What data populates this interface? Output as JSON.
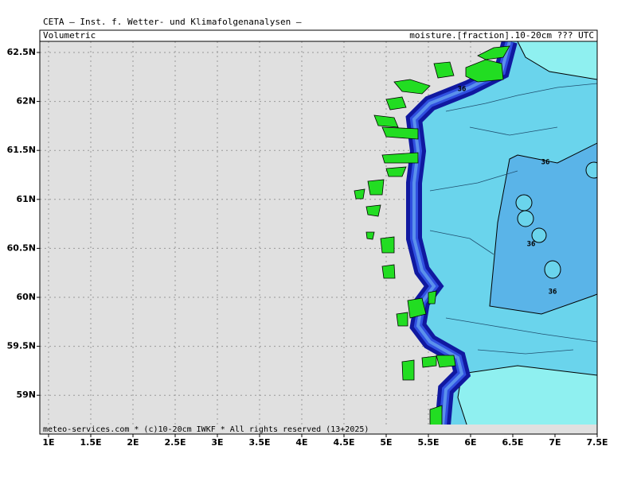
{
  "header": {
    "title": "CETA — Inst. f. Wetter- und Klimafolgenanalysen —",
    "left": "Volumetric",
    "right": "moisture.[fraction].10-20cm ??? UTC"
  },
  "footer": "meteo-services.com * (c)10-20cm IWKF * All rights reserved (13+2025)",
  "axes": {
    "lon_ticks": [
      {
        "value": 1,
        "label": "1E"
      },
      {
        "value": 1.5,
        "label": "1.5E"
      },
      {
        "value": 2,
        "label": "2E"
      },
      {
        "value": 2.5,
        "label": "2.5E"
      },
      {
        "value": 3,
        "label": "3E"
      },
      {
        "value": 3.5,
        "label": "3.5E"
      },
      {
        "value": 4,
        "label": "4E"
      },
      {
        "value": 4.5,
        "label": "4.5E"
      },
      {
        "value": 5,
        "label": "5E"
      },
      {
        "value": 5.5,
        "label": "5.5E"
      },
      {
        "value": 6,
        "label": "6E"
      },
      {
        "value": 6.5,
        "label": "6.5E"
      },
      {
        "value": 7,
        "label": "7E"
      },
      {
        "value": 7.5,
        "label": "7.5E"
      }
    ],
    "lat_ticks": [
      {
        "value": 62.5,
        "label": "62.5N"
      },
      {
        "value": 62,
        "label": "62N"
      },
      {
        "value": 61.5,
        "label": "61.5N"
      },
      {
        "value": 61,
        "label": "61N"
      },
      {
        "value": 60.5,
        "label": "60.5N"
      },
      {
        "value": 60,
        "label": "60N"
      },
      {
        "value": 59.5,
        "label": "59.5N"
      },
      {
        "value": 59,
        "label": "59N"
      }
    ]
  },
  "contour_labels": [
    "36",
    "36",
    "36",
    "36"
  ]
}
